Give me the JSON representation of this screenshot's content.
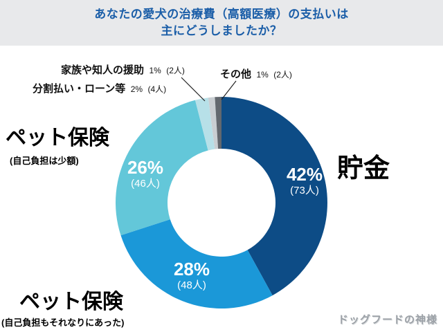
{
  "title": {
    "line1": "あなたの愛犬の治療費（高額医療）の支払いは",
    "line2": "主にどうしましたか？"
  },
  "chart_data": {
    "type": "pie",
    "title": "あなたの愛犬の治療費（高額医療）の支払いは主にどうしましたか？",
    "donut": true,
    "start_angle": "top",
    "direction": "clockwise",
    "unit": "人",
    "slices": [
      {
        "label": "貯金",
        "pct": 42,
        "count": 73,
        "pct_label": "42%",
        "count_label": "(73人)",
        "color": "#0d4c86"
      },
      {
        "label": "ペット保険",
        "sub": "(自己負担もそれなりにあった)",
        "pct": 28,
        "count": 48,
        "pct_label": "28%",
        "count_label": "(48人)",
        "color": "#1b98d8"
      },
      {
        "label": "ペット保険",
        "sub": "(自己負担は少額)",
        "pct": 26,
        "count": 46,
        "pct_label": "26%",
        "count_label": "(46人)",
        "color": "#63c7d9"
      },
      {
        "label": "分割払い・ローン等",
        "pct": 2,
        "count": 4,
        "pct_label": "2%",
        "count_label": "(4人)",
        "color": "#b7e0e8"
      },
      {
        "label": "家族や知人の援助",
        "pct": 1,
        "count": 2,
        "pct_label": "1%",
        "count_label": "(2人)",
        "color": "#c9ced2"
      },
      {
        "label": "その他",
        "pct": 1,
        "count": 2,
        "pct_label": "1%",
        "count_label": "(2人)",
        "color": "#63686e"
      }
    ]
  },
  "watermark": {
    "text": "ドッグフードの神様"
  }
}
